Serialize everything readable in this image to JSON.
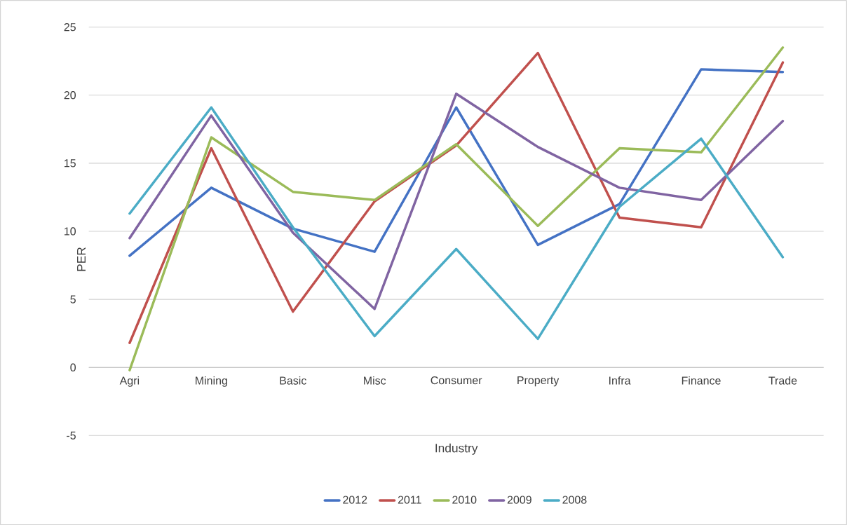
{
  "chart_data": {
    "type": "line",
    "xlabel": "Industry",
    "ylabel": "PER",
    "categories": [
      "Agri",
      "Mining",
      "Basic",
      "Misc",
      "Consumer",
      "Property",
      "Infra",
      "Finance",
      "Trade"
    ],
    "series": [
      {
        "name": "2012",
        "color": "#4472c4",
        "values": [
          8.2,
          13.2,
          10.2,
          8.5,
          19.1,
          9.0,
          12.0,
          21.9,
          21.7
        ]
      },
      {
        "name": "2011",
        "color": "#c0504d",
        "values": [
          1.8,
          16.1,
          4.1,
          12.2,
          16.3,
          23.1,
          11.0,
          10.3,
          22.4
        ]
      },
      {
        "name": "2010",
        "color": "#9bbb59",
        "values": [
          -0.2,
          16.9,
          12.9,
          12.3,
          16.4,
          10.4,
          16.1,
          15.8,
          23.5
        ]
      },
      {
        "name": "2009",
        "color": "#8064a2",
        "values": [
          9.5,
          18.5,
          9.9,
          4.3,
          20.1,
          16.2,
          13.2,
          12.3,
          18.1
        ]
      },
      {
        "name": "2008",
        "color": "#4bacc6",
        "values": [
          11.3,
          19.1,
          10.3,
          2.3,
          8.7,
          2.1,
          11.8,
          16.8,
          8.1
        ]
      }
    ],
    "ylim": [
      -5,
      25
    ],
    "yticks": [
      -5,
      0,
      5,
      10,
      15,
      20,
      25
    ],
    "grid": "y",
    "legend": "bottom",
    "marker": "none",
    "line_style": "solid"
  }
}
